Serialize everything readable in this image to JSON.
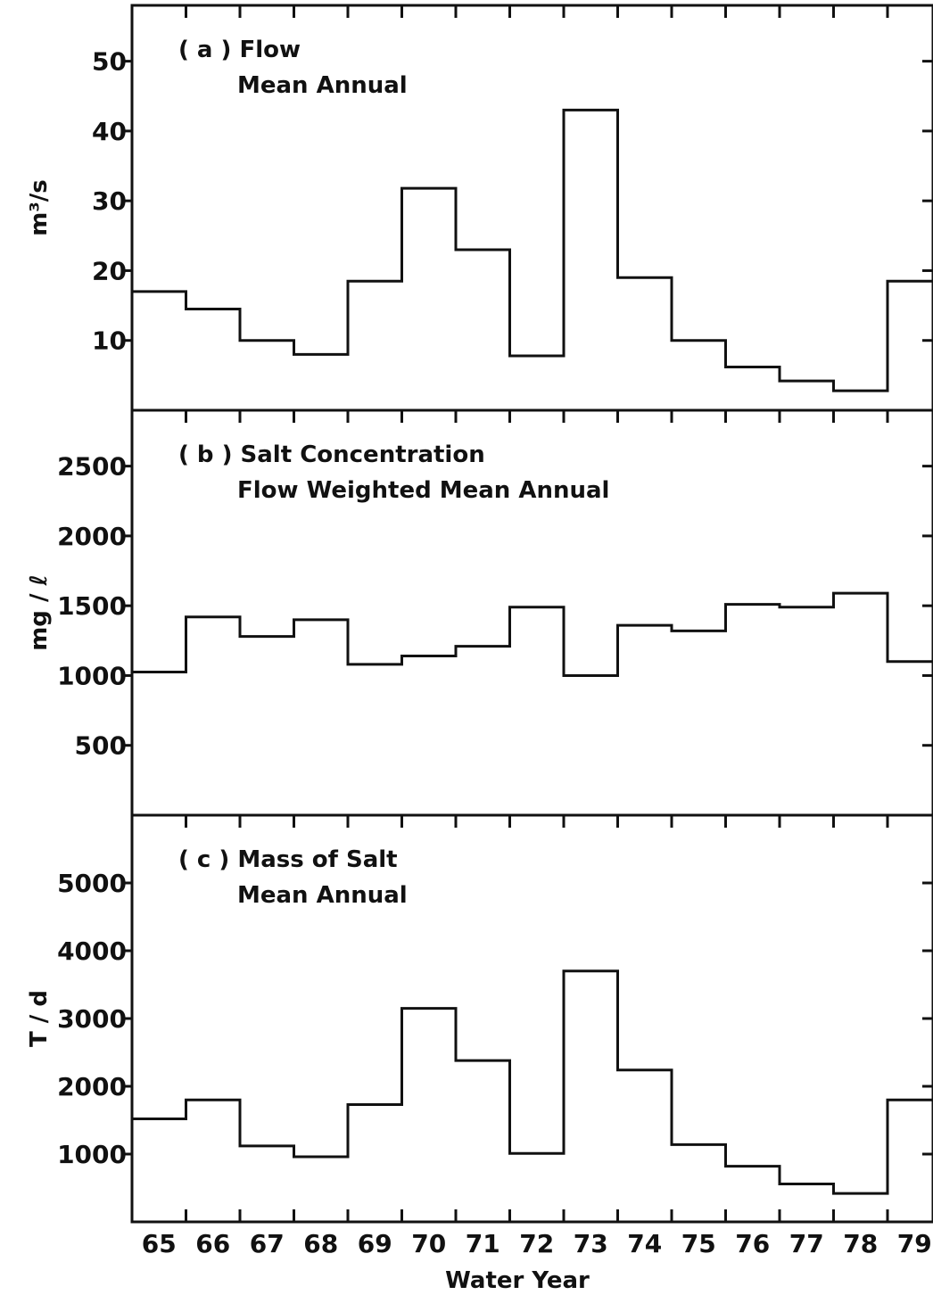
{
  "chart_data": [
    {
      "type": "line",
      "style": "step",
      "panel": "(a)",
      "title": "( a ) Flow",
      "subtitle": "Mean Annual",
      "ylabel": "m³/s",
      "ylim": [
        0,
        58
      ],
      "yticks": [
        10,
        20,
        30,
        40,
        50
      ],
      "ytick_labels": [
        "10",
        "20",
        "30",
        "40",
        "50"
      ],
      "grid": false,
      "x": [
        65,
        66,
        67,
        68,
        69,
        70,
        71,
        72,
        73,
        74,
        75,
        76,
        77,
        78,
        79
      ],
      "values": [
        17,
        14.5,
        10,
        8,
        18.5,
        31.8,
        23,
        7.8,
        43,
        19,
        10,
        6.2,
        4.2,
        2.8,
        18.5
      ]
    },
    {
      "type": "line",
      "style": "step",
      "panel": "(b)",
      "title": "( b ) Salt Concentration",
      "subtitle": "Flow Weighted Mean Annual",
      "ylabel": "mg / ℓ",
      "ylim": [
        0,
        2900
      ],
      "yticks": [
        500,
        1000,
        1500,
        2000,
        2500
      ],
      "ytick_labels": [
        "500",
        "1000",
        "1500",
        "2000",
        "2500"
      ],
      "grid": false,
      "x": [
        65,
        66,
        67,
        68,
        69,
        70,
        71,
        72,
        73,
        74,
        75,
        76,
        77,
        78,
        79
      ],
      "values": [
        1025,
        1420,
        1280,
        1400,
        1080,
        1140,
        1210,
        1490,
        1000,
        1360,
        1320,
        1510,
        1490,
        1590,
        1100
      ]
    },
    {
      "type": "line",
      "style": "step",
      "panel": "(c)",
      "title": "( c ) Mass of Salt",
      "subtitle": "Mean Annual",
      "ylabel": "T / d",
      "ylim": [
        0,
        6000
      ],
      "yticks": [
        1000,
        2000,
        3000,
        4000,
        5000
      ],
      "ytick_labels": [
        "1000",
        "2000",
        "3000",
        "4000",
        "5000"
      ],
      "grid": false,
      "x": [
        65,
        66,
        67,
        68,
        69,
        70,
        71,
        72,
        73,
        74,
        75,
        76,
        77,
        78,
        79
      ],
      "values": [
        1520,
        1800,
        1120,
        960,
        1730,
        3150,
        2380,
        1010,
        3700,
        2240,
        1140,
        820,
        560,
        420,
        1800
      ]
    }
  ],
  "x_axis": {
    "label": "Water Year",
    "categories": [
      "65",
      "66",
      "67",
      "68",
      "69",
      "70",
      "71",
      "72",
      "73",
      "74",
      "75",
      "76",
      "77",
      "78",
      "79"
    ]
  }
}
